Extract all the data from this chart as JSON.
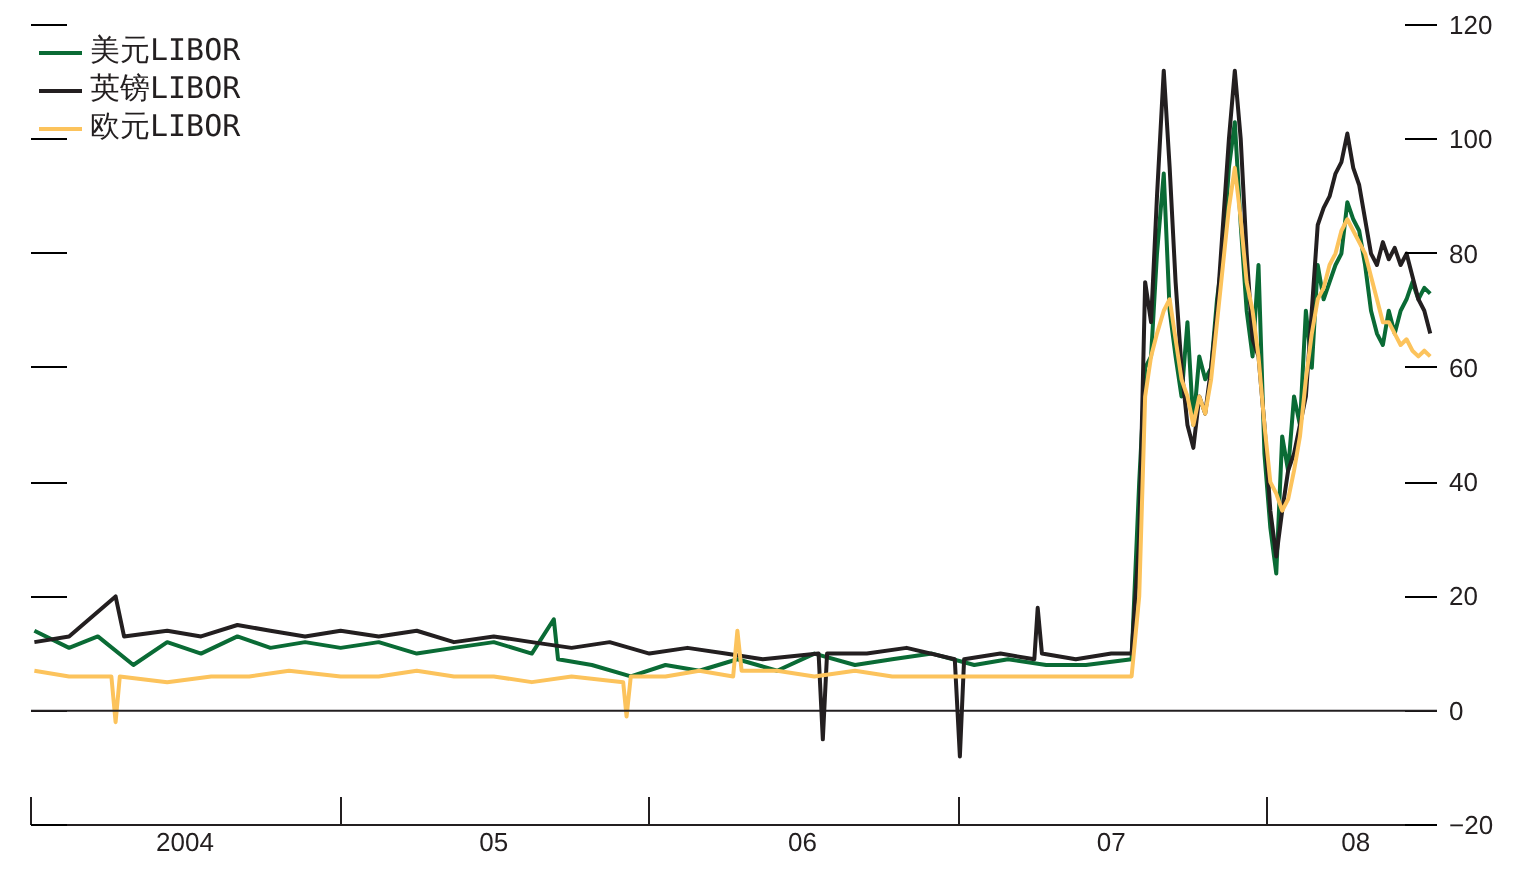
{
  "chart_data": {
    "type": "line",
    "xlim": [
      "2004-01-01",
      "2008-07-20"
    ],
    "xticks": [
      {
        "value": "2004-01-01",
        "label": null
      },
      {
        "value": "2005-01-01",
        "label": null
      },
      {
        "value": "2006-01-01",
        "label": null
      },
      {
        "value": "2007-01-01",
        "label": null
      },
      {
        "value": "2008-01-01",
        "label": null
      },
      {
        "value": "2004-07-01",
        "label": "2004"
      },
      {
        "value": "2005-07-01",
        "label": "05"
      },
      {
        "value": "2006-07-01",
        "label": "06"
      },
      {
        "value": "2007-07-01",
        "label": "07"
      },
      {
        "value": "2008-04-15",
        "label": "08"
      }
    ],
    "ylim": [
      -20,
      120
    ],
    "yticks": [
      -20,
      0,
      20,
      40,
      60,
      80,
      100,
      120
    ],
    "grid": false,
    "legend": "top left",
    "ref_lines": [
      {
        "axis": "y",
        "value": 0,
        "color": "#231f20"
      }
    ],
    "series": [
      {
        "name": "美元LIBOR",
        "color": "#0a6b35",
        "x": [
          "2004-01-05",
          "2004-02-15",
          "2004-03-20",
          "2004-05-01",
          "2004-06-10",
          "2004-07-20",
          "2004-09-01",
          "2004-10-10",
          "2004-11-20",
          "2005-01-01",
          "2005-02-15",
          "2005-04-01",
          "2005-05-15",
          "2005-07-01",
          "2005-08-15",
          "2005-09-10",
          "2005-09-15",
          "2005-10-25",
          "2005-12-10",
          "2006-01-20",
          "2006-03-01",
          "2006-04-15",
          "2006-06-01",
          "2006-07-15",
          "2006-09-01",
          "2006-10-15",
          "2006-12-01",
          "2007-01-20",
          "2007-03-01",
          "2007-04-15",
          "2007-06-01",
          "2007-07-25",
          "2007-08-03",
          "2007-08-10",
          "2007-08-17",
          "2007-08-24",
          "2007-09-01",
          "2007-09-08",
          "2007-09-15",
          "2007-09-22",
          "2007-09-29",
          "2007-10-06",
          "2007-10-13",
          "2007-10-20",
          "2007-10-27",
          "2007-11-03",
          "2007-11-10",
          "2007-11-17",
          "2007-11-24",
          "2007-12-01",
          "2007-12-08",
          "2007-12-15",
          "2007-12-22",
          "2007-12-29",
          "2008-01-05",
          "2008-01-12",
          "2008-01-19",
          "2008-01-26",
          "2008-02-02",
          "2008-02-09",
          "2008-02-16",
          "2008-02-23",
          "2008-03-01",
          "2008-03-08",
          "2008-03-15",
          "2008-03-22",
          "2008-03-29",
          "2008-04-05",
          "2008-04-12",
          "2008-04-19",
          "2008-04-26",
          "2008-05-03",
          "2008-05-10",
          "2008-05-17",
          "2008-05-24",
          "2008-05-31",
          "2008-06-07",
          "2008-06-14",
          "2008-06-21",
          "2008-06-28",
          "2008-07-05",
          "2008-07-12"
        ],
        "values": [
          14,
          11,
          13,
          8,
          12,
          10,
          13,
          11,
          12,
          11,
          12,
          10,
          11,
          12,
          10,
          16,
          9,
          8,
          6,
          8,
          7,
          9,
          7,
          10,
          8,
          9,
          10,
          8,
          9,
          8,
          8,
          9,
          40,
          60,
          62,
          80,
          94,
          70,
          62,
          55,
          68,
          50,
          62,
          58,
          60,
          72,
          80,
          95,
          103,
          85,
          70,
          62,
          78,
          45,
          32,
          24,
          48,
          42,
          55,
          50,
          70,
          60,
          78,
          72,
          75,
          78,
          80,
          89,
          86,
          84,
          78,
          70,
          66,
          64,
          70,
          66,
          70,
          72,
          75,
          72,
          74,
          73
        ]
      },
      {
        "name": "英镑LIBOR",
        "color": "#231f20",
        "x": [
          "2004-01-05",
          "2004-02-15",
          "2004-04-10",
          "2004-04-20",
          "2004-06-10",
          "2004-07-20",
          "2004-09-01",
          "2004-10-10",
          "2004-11-20",
          "2005-01-01",
          "2005-02-15",
          "2005-04-01",
          "2005-05-15",
          "2005-07-01",
          "2005-08-15",
          "2005-10-01",
          "2005-11-15",
          "2006-01-01",
          "2006-02-15",
          "2006-04-01",
          "2006-05-15",
          "2006-07-20",
          "2006-07-25",
          "2006-07-30",
          "2006-09-15",
          "2006-11-01",
          "2006-12-28",
          "2007-01-03",
          "2007-01-08",
          "2007-02-20",
          "2007-04-01",
          "2007-04-05",
          "2007-04-10",
          "2007-05-20",
          "2007-07-01",
          "2007-07-25",
          "2007-08-03",
          "2007-08-10",
          "2007-08-17",
          "2007-08-24",
          "2007-09-01",
          "2007-09-08",
          "2007-09-15",
          "2007-09-22",
          "2007-09-29",
          "2007-10-06",
          "2007-10-13",
          "2007-10-20",
          "2007-10-27",
          "2007-11-03",
          "2007-11-10",
          "2007-11-17",
          "2007-11-24",
          "2007-12-01",
          "2007-12-08",
          "2007-12-15",
          "2007-12-22",
          "2007-12-29",
          "2008-01-05",
          "2008-01-12",
          "2008-01-19",
          "2008-01-26",
          "2008-02-02",
          "2008-02-09",
          "2008-02-16",
          "2008-02-23",
          "2008-03-01",
          "2008-03-08",
          "2008-03-15",
          "2008-03-22",
          "2008-03-29",
          "2008-04-05",
          "2008-04-12",
          "2008-04-19",
          "2008-04-26",
          "2008-05-03",
          "2008-05-10",
          "2008-05-17",
          "2008-05-24",
          "2008-05-31",
          "2008-06-07",
          "2008-06-14",
          "2008-06-21",
          "2008-06-28",
          "2008-07-05",
          "2008-07-12"
        ],
        "values": [
          12,
          13,
          20,
          13,
          14,
          13,
          15,
          14,
          13,
          14,
          13,
          14,
          12,
          13,
          12,
          11,
          12,
          10,
          11,
          10,
          9,
          10,
          -5,
          10,
          10,
          11,
          9,
          -8,
          9,
          10,
          9,
          18,
          10,
          9,
          10,
          10,
          30,
          75,
          68,
          90,
          112,
          95,
          75,
          60,
          50,
          46,
          55,
          52,
          60,
          70,
          85,
          100,
          112,
          100,
          80,
          65,
          62,
          50,
          35,
          27,
          35,
          42,
          45,
          50,
          55,
          70,
          85,
          88,
          90,
          94,
          96,
          101,
          95,
          92,
          86,
          80,
          78,
          82,
          79,
          81,
          78,
          80,
          76,
          72,
          70,
          66
        ]
      },
      {
        "name": "欧元LIBOR",
        "color": "#fcc35c",
        "x": [
          "2004-01-05",
          "2004-02-15",
          "2004-04-05",
          "2004-04-10",
          "2004-04-15",
          "2004-06-10",
          "2004-08-01",
          "2004-09-15",
          "2004-11-01",
          "2005-01-01",
          "2005-02-15",
          "2005-04-01",
          "2005-05-15",
          "2005-07-01",
          "2005-08-15",
          "2005-10-01",
          "2005-12-01",
          "2005-12-05",
          "2005-12-10",
          "2006-01-20",
          "2006-03-01",
          "2006-04-10",
          "2006-04-15",
          "2006-04-20",
          "2006-06-01",
          "2006-07-15",
          "2006-09-01",
          "2006-10-15",
          "2006-12-01",
          "2007-01-20",
          "2007-03-01",
          "2007-04-15",
          "2007-06-01",
          "2007-07-25",
          "2007-08-03",
          "2007-08-10",
          "2007-08-17",
          "2007-08-24",
          "2007-09-01",
          "2007-09-08",
          "2007-09-15",
          "2007-09-22",
          "2007-09-29",
          "2007-10-06",
          "2007-10-13",
          "2007-10-20",
          "2007-10-27",
          "2007-11-03",
          "2007-11-10",
          "2007-11-17",
          "2007-11-24",
          "2007-12-01",
          "2007-12-08",
          "2007-12-15",
          "2007-12-22",
          "2007-12-29",
          "2008-01-05",
          "2008-01-12",
          "2008-01-19",
          "2008-01-26",
          "2008-02-02",
          "2008-02-09",
          "2008-02-16",
          "2008-02-23",
          "2008-03-01",
          "2008-03-08",
          "2008-03-15",
          "2008-03-22",
          "2008-03-29",
          "2008-04-05",
          "2008-04-12",
          "2008-04-19",
          "2008-04-26",
          "2008-05-03",
          "2008-05-10",
          "2008-05-17",
          "2008-05-24",
          "2008-05-31",
          "2008-06-07",
          "2008-06-14",
          "2008-06-21",
          "2008-06-28",
          "2008-07-05",
          "2008-07-12"
        ],
        "values": [
          7,
          6,
          6,
          -2,
          6,
          5,
          6,
          6,
          7,
          6,
          6,
          7,
          6,
          6,
          5,
          6,
          5,
          -1,
          6,
          6,
          7,
          6,
          14,
          7,
          7,
          6,
          7,
          6,
          6,
          6,
          6,
          6,
          6,
          6,
          20,
          55,
          62,
          66,
          70,
          72,
          65,
          58,
          55,
          50,
          55,
          52,
          58,
          68,
          78,
          88,
          95,
          86,
          75,
          70,
          62,
          50,
          40,
          38,
          35,
          37,
          42,
          48,
          58,
          66,
          72,
          74,
          78,
          80,
          84,
          86,
          84,
          82,
          80,
          76,
          72,
          68,
          68,
          66,
          64,
          65,
          63,
          62,
          63,
          62
        ]
      }
    ]
  }
}
